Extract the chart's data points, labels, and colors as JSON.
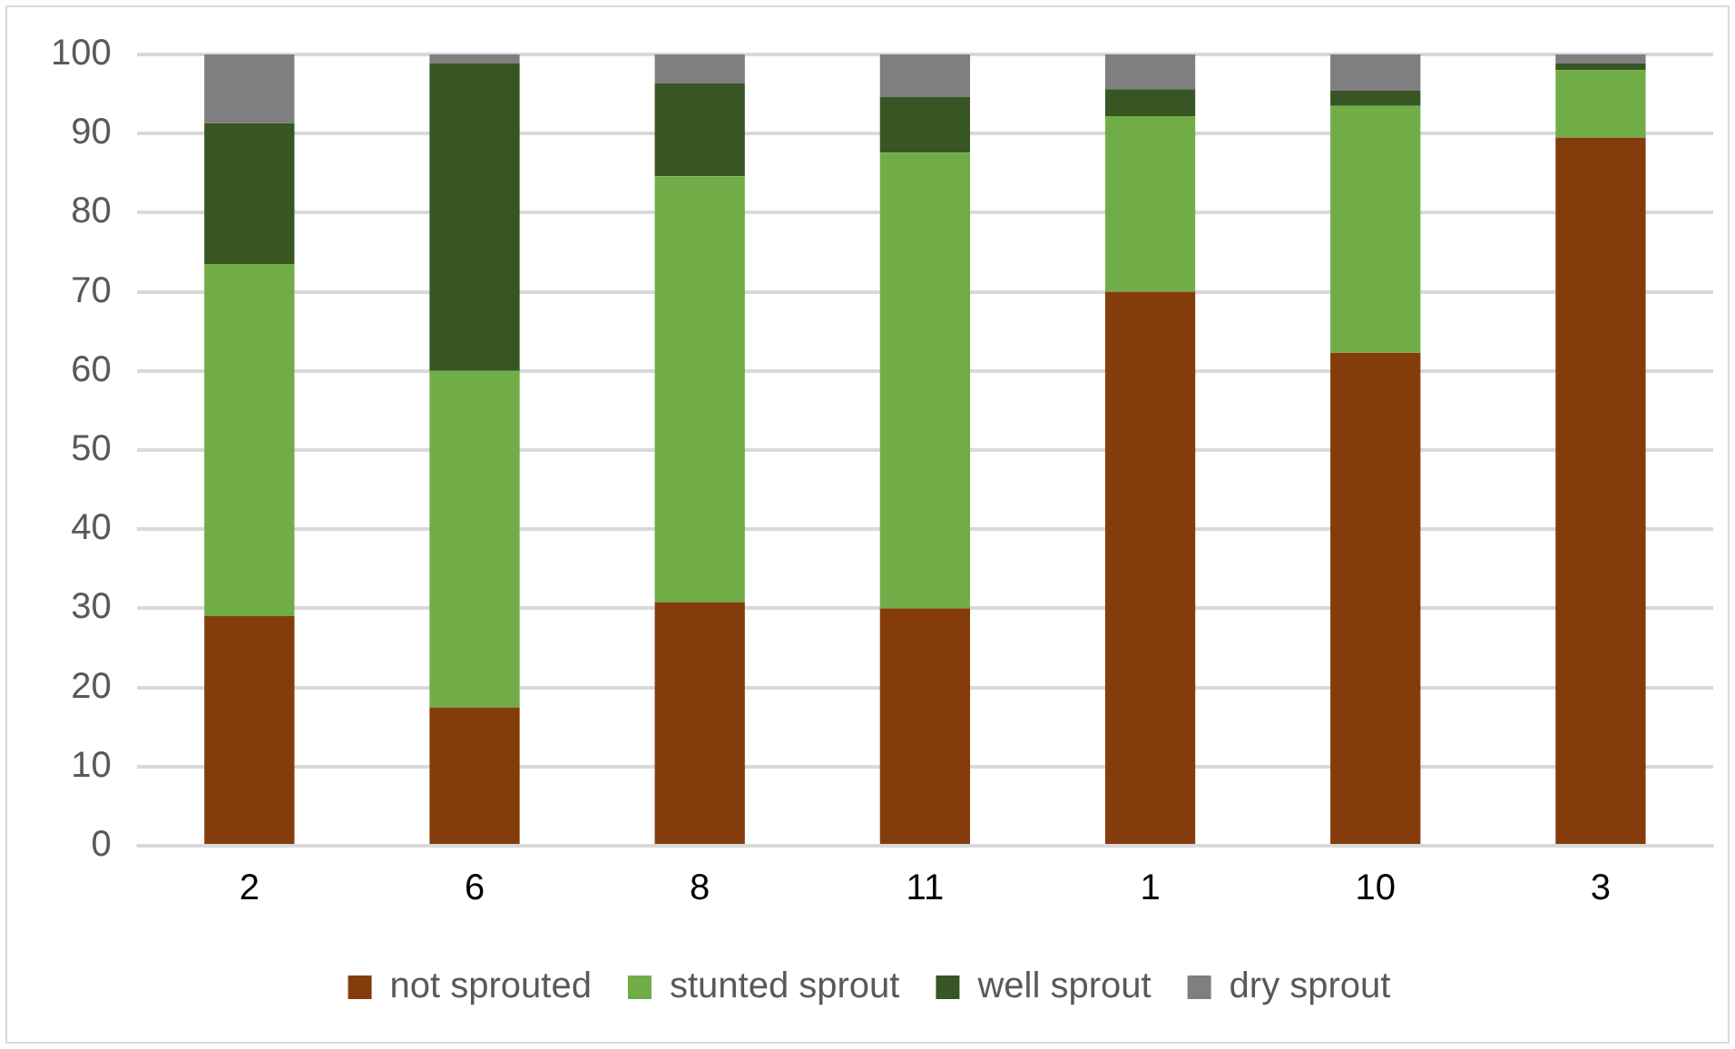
{
  "chart_data": {
    "type": "bar",
    "stacked": true,
    "categories": [
      "2",
      "6",
      "8",
      "11",
      "1",
      "10",
      "3"
    ],
    "series": [
      {
        "name": "not sprouted",
        "color": "#843c0c",
        "values": [
          29,
          17.5,
          30.8,
          30,
          70,
          62.3,
          89.5
        ]
      },
      {
        "name": "stunted sprout",
        "color": "#70ad47",
        "values": [
          44.5,
          42.5,
          53.8,
          57.6,
          22.2,
          31.2,
          8.5
        ]
      },
      {
        "name": "well sprout",
        "color": "#375623",
        "values": [
          17.8,
          38.9,
          11.8,
          7,
          3.4,
          1.9,
          0.9
        ]
      },
      {
        "name": "dry sprout",
        "color": "#7f7f7f",
        "values": [
          8.7,
          1.1,
          3.6,
          5.4,
          4.4,
          4.6,
          1.1
        ]
      }
    ],
    "ylim": [
      0,
      100
    ],
    "yticks": [
      0,
      10,
      20,
      30,
      40,
      50,
      60,
      70,
      80,
      90,
      100
    ],
    "grid": "y",
    "legend": "bottom"
  }
}
